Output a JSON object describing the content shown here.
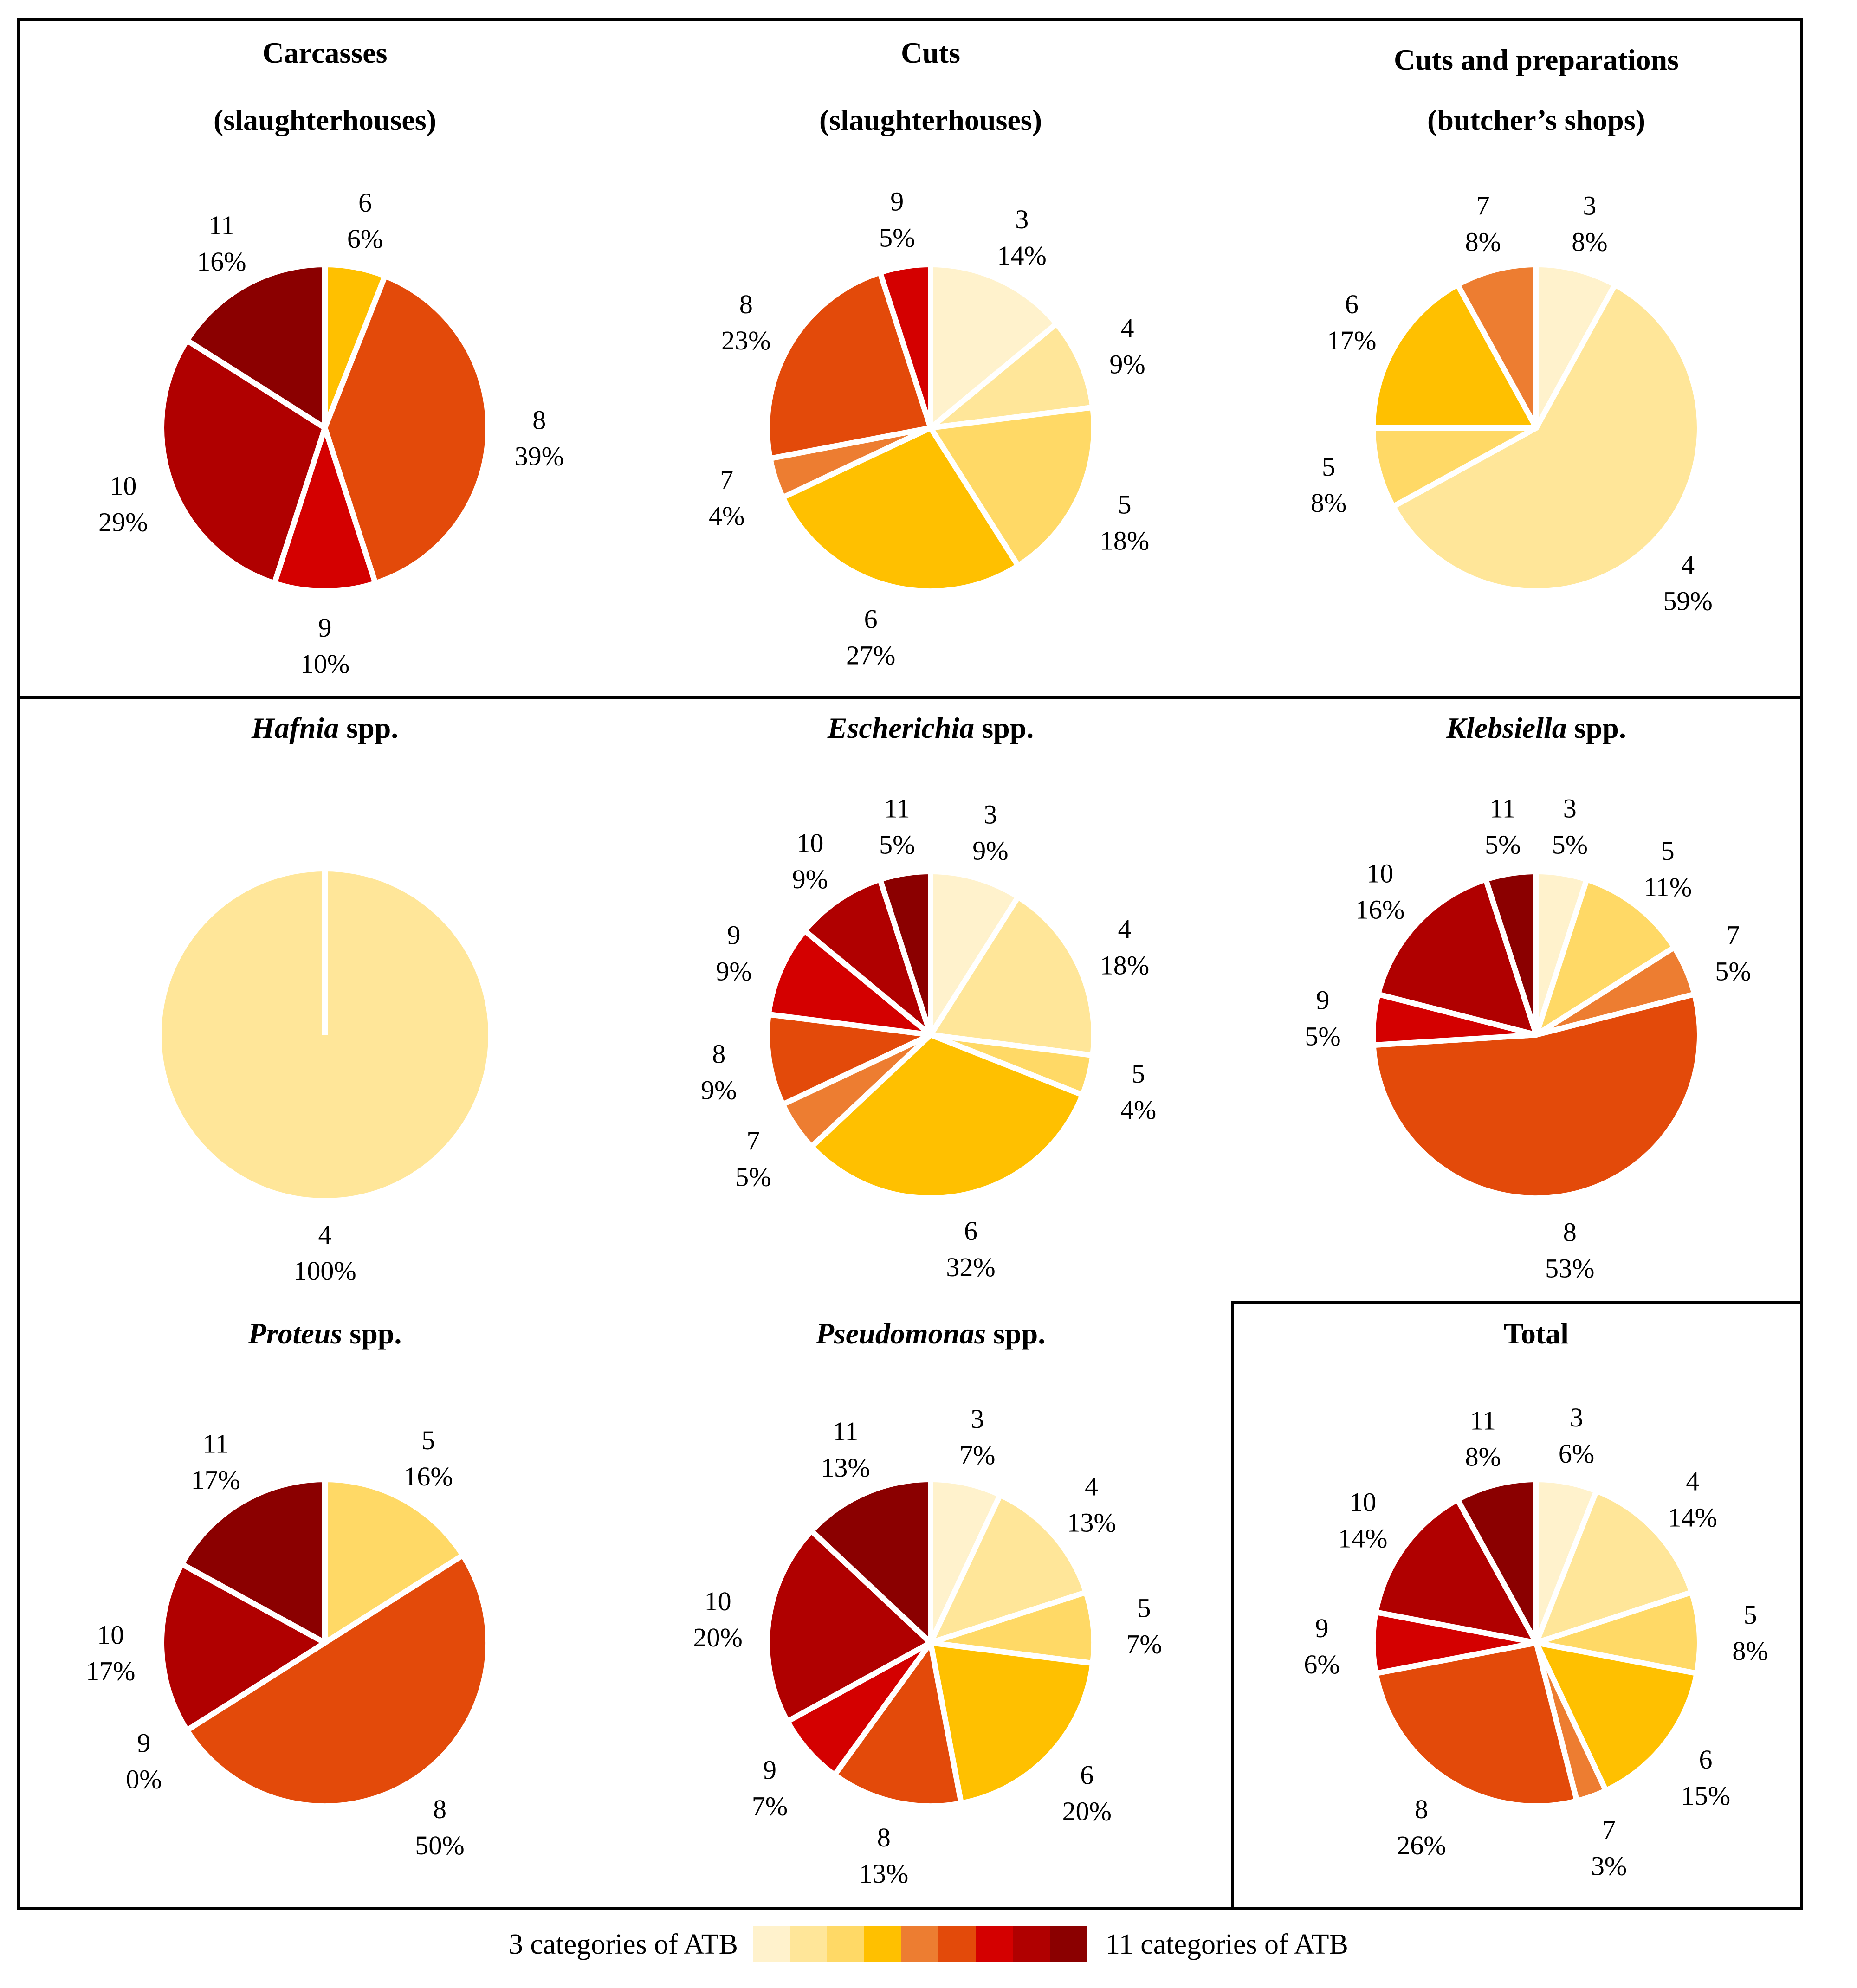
{
  "colors": {
    "3": "#FFF2CC",
    "4": "#FFE699",
    "5": "#FFD966",
    "6": "#FFC000",
    "7": "#ED7D31",
    "8": "#E34A0A",
    "9": "#D40000",
    "10": "#B00000",
    "11": "#8B0000"
  },
  "legend": {
    "left_label": "3 categories of ATB",
    "right_label": "11 categories of ATB",
    "swatches": [
      "3",
      "4",
      "5",
      "6",
      "7",
      "8",
      "9",
      "10",
      "11"
    ]
  },
  "chart_data": [
    {
      "type": "pie",
      "title": "Carcasses",
      "title_line2": "(slaughterhouses)",
      "slices": [
        {
          "category": "6",
          "pct": "6%",
          "value": 6
        },
        {
          "category": "8",
          "pct": "39%",
          "value": 39
        },
        {
          "category": "9",
          "pct": "10%",
          "value": 10
        },
        {
          "category": "10",
          "pct": "29%",
          "value": 29
        },
        {
          "category": "11",
          "pct": "16%",
          "value": 16
        }
      ]
    },
    {
      "type": "pie",
      "title": "Cuts",
      "title_line2": "(slaughterhouses)",
      "slices": [
        {
          "category": "3",
          "pct": "14%",
          "value": 14
        },
        {
          "category": "4",
          "pct": "9%",
          "value": 9
        },
        {
          "category": "5",
          "pct": "18%",
          "value": 18
        },
        {
          "category": "6",
          "pct": "27%",
          "value": 27
        },
        {
          "category": "7",
          "pct": "4%",
          "value": 4
        },
        {
          "category": "8",
          "pct": "23%",
          "value": 23
        },
        {
          "category": "9",
          "pct": "5%",
          "value": 5
        }
      ]
    },
    {
      "type": "pie",
      "title": "Cuts and preparations",
      "title_line2": "(butcher’s shops)",
      "slices": [
        {
          "category": "3",
          "pct": "8%",
          "value": 8
        },
        {
          "category": "4",
          "pct": "59%",
          "value": 59
        },
        {
          "category": "5",
          "pct": "8%",
          "value": 8
        },
        {
          "category": "6",
          "pct": "17%",
          "value": 17
        },
        {
          "category": "7",
          "pct": "8%",
          "value": 8
        }
      ]
    },
    {
      "type": "pie",
      "title_italic": "Hafnia",
      "title_rest": " spp.",
      "slices": [
        {
          "category": "4",
          "pct": "100%",
          "value": 100
        }
      ]
    },
    {
      "type": "pie",
      "title_italic": "Escherichia",
      "title_rest": " spp.",
      "slices": [
        {
          "category": "3",
          "pct": "9%",
          "value": 9
        },
        {
          "category": "4",
          "pct": "18%",
          "value": 18
        },
        {
          "category": "5",
          "pct": "4%",
          "value": 4
        },
        {
          "category": "6",
          "pct": "32%",
          "value": 32
        },
        {
          "category": "7",
          "pct": "5%",
          "value": 5
        },
        {
          "category": "8",
          "pct": "9%",
          "value": 9
        },
        {
          "category": "9",
          "pct": "9%",
          "value": 9
        },
        {
          "category": "10",
          "pct": "9%",
          "value": 9
        },
        {
          "category": "11",
          "pct": "5%",
          "value": 5
        }
      ]
    },
    {
      "type": "pie",
      "title_italic": "Klebsiella",
      "title_rest": " spp.",
      "slices": [
        {
          "category": "3",
          "pct": "5%",
          "value": 5
        },
        {
          "category": "5",
          "pct": "11%",
          "value": 11
        },
        {
          "category": "7",
          "pct": "5%",
          "value": 5
        },
        {
          "category": "8",
          "pct": "53%",
          "value": 53
        },
        {
          "category": "9",
          "pct": "5%",
          "value": 5
        },
        {
          "category": "10",
          "pct": "16%",
          "value": 16
        },
        {
          "category": "11",
          "pct": "5%",
          "value": 5
        }
      ]
    },
    {
      "type": "pie",
      "title_italic": "Proteus",
      "title_rest": " spp.",
      "slices": [
        {
          "category": "5",
          "pct": "16%",
          "value": 16
        },
        {
          "category": "8",
          "pct": "50%",
          "value": 50
        },
        {
          "category": "9",
          "pct": "0%",
          "value": 0
        },
        {
          "category": "10",
          "pct": "17%",
          "value": 17
        },
        {
          "category": "11",
          "pct": "17%",
          "value": 17
        }
      ]
    },
    {
      "type": "pie",
      "title_italic": "Pseudomonas",
      "title_rest": " spp.",
      "slices": [
        {
          "category": "3",
          "pct": "7%",
          "value": 7
        },
        {
          "category": "4",
          "pct": "13%",
          "value": 13
        },
        {
          "category": "5",
          "pct": "7%",
          "value": 7
        },
        {
          "category": "6",
          "pct": "20%",
          "value": 20
        },
        {
          "category": "8",
          "pct": "13%",
          "value": 13
        },
        {
          "category": "9",
          "pct": "7%",
          "value": 7
        },
        {
          "category": "10",
          "pct": "20%",
          "value": 20
        },
        {
          "category": "11",
          "pct": "13%",
          "value": 13
        }
      ]
    },
    {
      "type": "pie",
      "title": "Total",
      "slices": [
        {
          "category": "3",
          "pct": "6%",
          "value": 6
        },
        {
          "category": "4",
          "pct": "14%",
          "value": 14
        },
        {
          "category": "5",
          "pct": "8%",
          "value": 8
        },
        {
          "category": "6",
          "pct": "15%",
          "value": 15
        },
        {
          "category": "7",
          "pct": "3%",
          "value": 3
        },
        {
          "category": "8",
          "pct": "26%",
          "value": 26
        },
        {
          "category": "9",
          "pct": "6%",
          "value": 6
        },
        {
          "category": "10",
          "pct": "14%",
          "value": 14
        },
        {
          "category": "11",
          "pct": "8%",
          "value": 8
        }
      ]
    }
  ]
}
